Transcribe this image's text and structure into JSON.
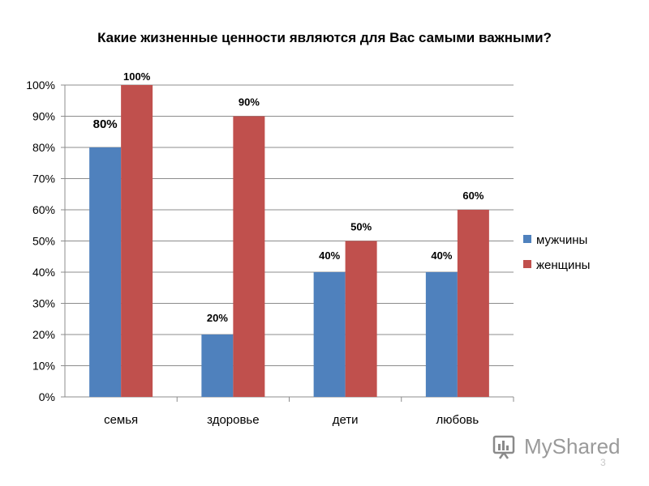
{
  "chart_data": {
    "type": "bar",
    "title": "Какие жизненные ценности являются для Вас самыми важными?",
    "categories": [
      "семья",
      "здоровье",
      "дети",
      "любовь"
    ],
    "series": [
      {
        "name": "мужчины",
        "values": [
          80,
          20,
          40,
          40
        ],
        "labels": [
          "80%",
          "20%",
          "40%",
          "40%"
        ],
        "color": "#4F81BD"
      },
      {
        "name": "женщины",
        "values": [
          100,
          90,
          50,
          60
        ],
        "labels": [
          "100%",
          "90%",
          "50%",
          "60%"
        ],
        "color": "#C0504D"
      }
    ],
    "ylim": [
      0,
      100
    ],
    "yticks": [
      "0%",
      "10%",
      "20%",
      "30%",
      "40%",
      "50%",
      "60%",
      "70%",
      "80%",
      "90%",
      "100%"
    ],
    "xlabel": "",
    "ylabel": "",
    "grid": true,
    "legend_position": "right"
  },
  "watermark": {
    "text": "MyShared",
    "icon": "myshared-logo-icon"
  },
  "page_number": "3"
}
